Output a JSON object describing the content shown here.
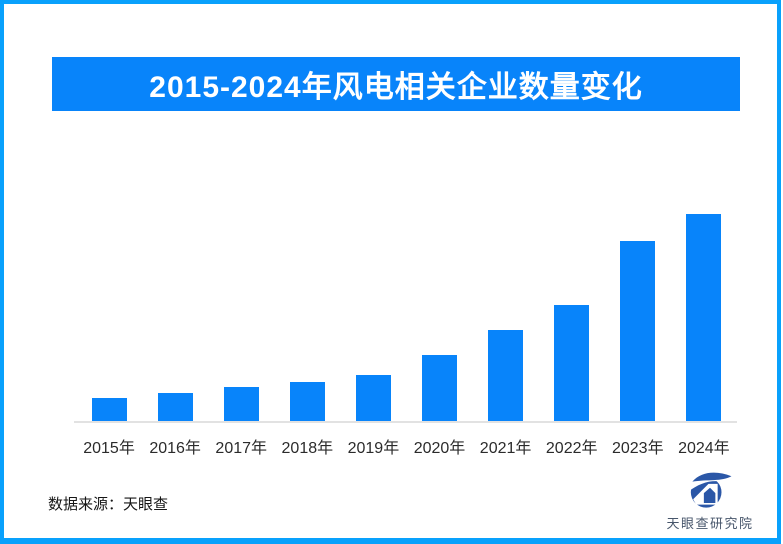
{
  "frame": {
    "border_color": "#09A1FC"
  },
  "header": {
    "title": "2015-2024年风电相关企业数量变化",
    "bg_color": "#0884FA",
    "text_color": "#FFFFFF"
  },
  "chart_data": {
    "type": "bar",
    "title": "2015-2024年风电相关企业数量变化",
    "categories": [
      "2015年",
      "2016年",
      "2017年",
      "2018年",
      "2019年",
      "2020年",
      "2021年",
      "2022年",
      "2023年",
      "2024年"
    ],
    "values": [
      11,
      13.5,
      16.5,
      19,
      22,
      32,
      44,
      56,
      87,
      100
    ],
    "value_note": "no y-axis or data labels shown; values estimated relative to 2024 bar = 100",
    "bar_color": "#0884FA",
    "axis_line_color": "#E2E2E2",
    "xlabel": "",
    "ylabel": "",
    "grid": "off",
    "legend": "none"
  },
  "footer": {
    "source_label": "数据来源：天眼查",
    "logo_text": "天眼查研究院",
    "logo_color": "#2B57A7"
  }
}
